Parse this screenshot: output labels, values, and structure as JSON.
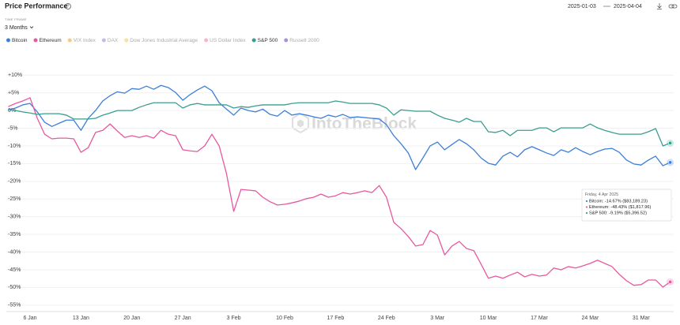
{
  "header": {
    "title": "Price Performance",
    "time_frame_label": "TIME FRAME",
    "time_frame": "3 Months",
    "date_from": "2025-01-03",
    "date_to": "2025-04-04"
  },
  "chart_data": {
    "type": "line",
    "watermark": "IntoTheBlock",
    "grid": true,
    "ylim": [
      -56.6,
      13.4
    ],
    "yticks": [
      {
        "value": 10,
        "label": "+10%"
      },
      {
        "value": 5,
        "label": "+5%"
      },
      {
        "value": 0,
        "label": "0%"
      },
      {
        "value": -5,
        "label": "-5%"
      },
      {
        "value": -10,
        "label": "-10%"
      },
      {
        "value": -15,
        "label": "-15%"
      },
      {
        "value": -20,
        "label": "-20%"
      },
      {
        "value": -25,
        "label": "-25%"
      },
      {
        "value": -30,
        "label": "-30%"
      },
      {
        "value": -35,
        "label": "-35%"
      },
      {
        "value": -40,
        "label": "-40%"
      },
      {
        "value": -45,
        "label": "-45%"
      },
      {
        "value": -50,
        "label": "-50%"
      },
      {
        "value": -55,
        "label": "-55%"
      }
    ],
    "categories": [
      null,
      null,
      null,
      "6 Jan",
      null,
      null,
      null,
      null,
      null,
      null,
      "13 Jan",
      null,
      null,
      null,
      null,
      null,
      null,
      "20 Jan",
      null,
      null,
      null,
      null,
      null,
      null,
      "27 Jan",
      null,
      null,
      null,
      null,
      null,
      null,
      "3 Feb",
      null,
      null,
      null,
      null,
      null,
      null,
      "10 Feb",
      null,
      null,
      null,
      null,
      null,
      null,
      "17 Feb",
      null,
      null,
      null,
      null,
      null,
      null,
      "24 Feb",
      null,
      null,
      null,
      null,
      null,
      null,
      "3 Mar",
      null,
      null,
      null,
      null,
      null,
      null,
      "10 Mar",
      null,
      null,
      null,
      null,
      null,
      null,
      "17 Mar",
      null,
      null,
      null,
      null,
      null,
      null,
      "24 Mar",
      null,
      null,
      null,
      null,
      null,
      null,
      "31 Mar",
      null,
      null,
      null,
      null
    ],
    "series": [
      {
        "name": "Bitcoin",
        "color": "#3d7fd9",
        "values": [
          0.2,
          0.7,
          1.6,
          2.0,
          -0.4,
          -3.3,
          -4.5,
          -3.6,
          -2.7,
          -2.7,
          -5.6,
          -2.2,
          0,
          2.7,
          4.2,
          5.3,
          4.9,
          6.2,
          6.0,
          6.9,
          6.0,
          7.1,
          6.5,
          5.1,
          2.9,
          4.5,
          5.8,
          6.9,
          5.6,
          2.2,
          0.4,
          -1.3,
          0.7,
          0,
          -0.4,
          0.4,
          -1.1,
          -1.6,
          0,
          -1.3,
          -0.9,
          -1.3,
          -1.8,
          -2.2,
          -1.3,
          -1.8,
          -1.1,
          -2.0,
          -1.8,
          -2.0,
          -2.2,
          -2.4,
          -4.0,
          -7.1,
          -9.4,
          -12.0,
          -16.7,
          -13.4,
          -10.0,
          -8.9,
          -11.1,
          -9.6,
          -8.2,
          -9.4,
          -11.1,
          -13.4,
          -14.9,
          -15.4,
          -12.9,
          -11.8,
          -13.1,
          -11.1,
          -10.2,
          -11.1,
          -12.0,
          -12.7,
          -11.1,
          -11.8,
          -10.5,
          -11.6,
          -12.5,
          -11.6,
          -10.9,
          -10.7,
          -11.8,
          -14.0,
          -15.1,
          -15.4,
          -14.0,
          -12.9,
          -15.6,
          -14.67
        ]
      },
      {
        "name": "Ethereum",
        "color": "#e8589e",
        "values": [
          1.1,
          2.0,
          2.7,
          3.6,
          -2.2,
          -6.7,
          -8.0,
          -7.8,
          -7.8,
          -8.0,
          -11.8,
          -10.5,
          -6.2,
          -5.6,
          -3.8,
          -5.8,
          -7.6,
          -7.1,
          -7.6,
          -7.1,
          -7.8,
          -5.6,
          -6.7,
          -7.1,
          -11.1,
          -11.4,
          -11.6,
          -10.0,
          -6.7,
          -10.0,
          -17.8,
          -28.5,
          -22.3,
          -22.5,
          -22.7,
          -24.5,
          -25.8,
          -26.7,
          -26.5,
          -26.1,
          -25.6,
          -24.9,
          -24.5,
          -23.6,
          -24.5,
          -24.1,
          -23.2,
          -23.6,
          -23.2,
          -22.7,
          -23.2,
          -21.2,
          -24.5,
          -31.6,
          -33.4,
          -35.6,
          -38.3,
          -37.9,
          -33.9,
          -35.2,
          -40.8,
          -38.3,
          -37.0,
          -39.0,
          -39.6,
          -43.4,
          -47.4,
          -46.8,
          -47.4,
          -46.5,
          -45.7,
          -47.0,
          -46.3,
          -46.8,
          -46.5,
          -44.5,
          -45.0,
          -44.1,
          -44.5,
          -43.9,
          -43.2,
          -42.3,
          -43.2,
          -44.1,
          -46.3,
          -48.1,
          -49.4,
          -49.2,
          -47.9,
          -47.9,
          -49.9,
          -48.43
        ]
      },
      {
        "name": "S&P 500",
        "color": "#3a9e8f",
        "values": [
          0.2,
          0,
          -0.4,
          -0.7,
          -1.1,
          -0.9,
          -0.9,
          -0.9,
          -1.3,
          -2.4,
          -2.4,
          -2.4,
          -2.2,
          -1.3,
          -0.7,
          0,
          0,
          0,
          0.9,
          1.6,
          2.2,
          2.2,
          2.2,
          2.2,
          0.7,
          1.6,
          2.0,
          1.6,
          1.6,
          1.6,
          1.6,
          0.7,
          1.1,
          0.9,
          1.3,
          1.6,
          1.6,
          1.6,
          1.6,
          2.0,
          2.2,
          2.2,
          2.2,
          2.2,
          2.2,
          2.7,
          2.4,
          2.0,
          2.0,
          2.0,
          2.0,
          1.6,
          0.7,
          -1.3,
          0.2,
          0,
          -0.2,
          -0.2,
          -0.2,
          -1.3,
          -2.2,
          -2.7,
          -3.3,
          -2.2,
          -3.1,
          -3.1,
          -6.0,
          -6.2,
          -5.6,
          -7.1,
          -5.6,
          -5.6,
          -5.6,
          -4.9,
          -4.9,
          -6.0,
          -4.9,
          -4.9,
          -4.9,
          -4.9,
          -3.8,
          -4.9,
          -5.6,
          -6.2,
          -6.7,
          -6.7,
          -6.7,
          -6.7,
          -6.0,
          -5.1,
          -10.0,
          -9.19
        ]
      }
    ],
    "inactive_series": [
      {
        "name": "VIX Index",
        "color": "#f5c98a"
      },
      {
        "name": "DAX",
        "color": "#c9b9e8"
      },
      {
        "name": "Dow Jones Industrial Average",
        "color": "#f3e39b"
      },
      {
        "name": "US Dollar Index",
        "color": "#f2b8cf"
      },
      {
        "name": "Russell 2000",
        "color": "#a993d6"
      }
    ],
    "legend_order": [
      "chart_data.series.0",
      "chart_data.series.1",
      "chart_data.inactive_series.0",
      "chart_data.inactive_series.1",
      "chart_data.inactive_series.2",
      "chart_data.inactive_series.3",
      "chart_data.series.2",
      "chart_data.inactive_series.4"
    ],
    "tooltip": {
      "title": "Friday, 4 Apr 2025",
      "lines": [
        "Bitcoin: -14.67% ($83,189.23)",
        "Ethereum: -48.43% ($1,817.96)",
        "S&P 500: -9.19% ($5,396.52)"
      ]
    }
  }
}
